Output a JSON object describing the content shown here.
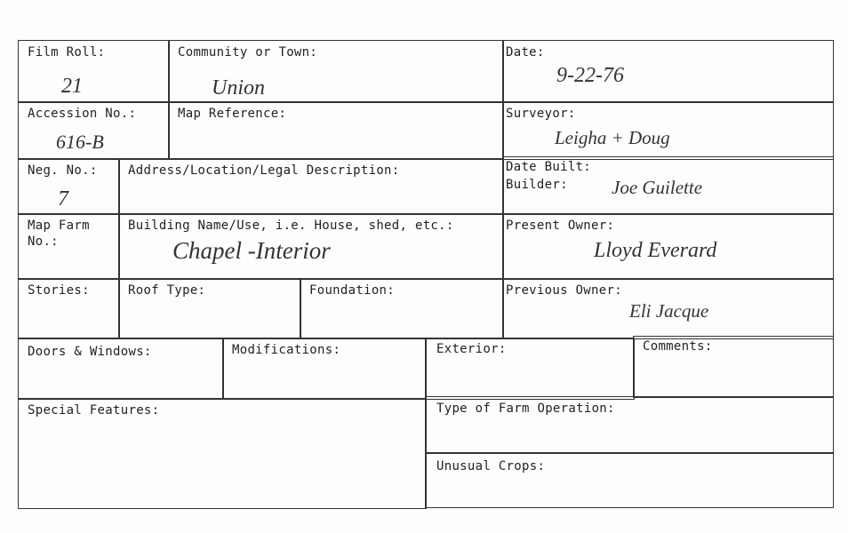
{
  "form": {
    "film_roll": {
      "label": "Film Roll:",
      "value": "21"
    },
    "community": {
      "label": "Community or Town:",
      "value": "Union"
    },
    "date": {
      "label": "Date:",
      "value": "9-22-76"
    },
    "accession": {
      "label": "Accession No.:",
      "value": "616-B"
    },
    "map_reference": {
      "label": "Map Reference:",
      "value": ""
    },
    "surveyor": {
      "label": "Surveyor:",
      "value": "Leigha + Doug"
    },
    "neg_no": {
      "label": "Neg. No.:",
      "value": "7"
    },
    "address": {
      "label": "Address/Location/Legal Description:",
      "value": ""
    },
    "date_built": {
      "label": "Date Built:",
      "value": ""
    },
    "builder": {
      "label": "Builder:",
      "value": "Joe Guilette"
    },
    "map_farm": {
      "label": "Map Farm\nNo.:",
      "value": ""
    },
    "building_name": {
      "label": "Building Name/Use, i.e. House, shed, etc.:",
      "value": "Chapel -Interior"
    },
    "present_owner": {
      "label": "Present Owner:",
      "value": "Lloyd Everard"
    },
    "stories": {
      "label": "Stories:"
    },
    "roof_type": {
      "label": "Roof Type:"
    },
    "foundation": {
      "label": "Foundation:"
    },
    "previous_owner": {
      "label": "Previous Owner:",
      "value": "Eli Jacque"
    },
    "doors_windows": {
      "label": "Doors & Windows:"
    },
    "modifications": {
      "label": "Modifications:"
    },
    "exterior": {
      "label": "Exterior:"
    },
    "comments": {
      "label": "Comments:"
    },
    "special_features": {
      "label": "Special Features:"
    },
    "farm_operation": {
      "label": "Type of Farm Operation:"
    },
    "unusual_crops": {
      "label": "Unusual Crops:"
    }
  }
}
